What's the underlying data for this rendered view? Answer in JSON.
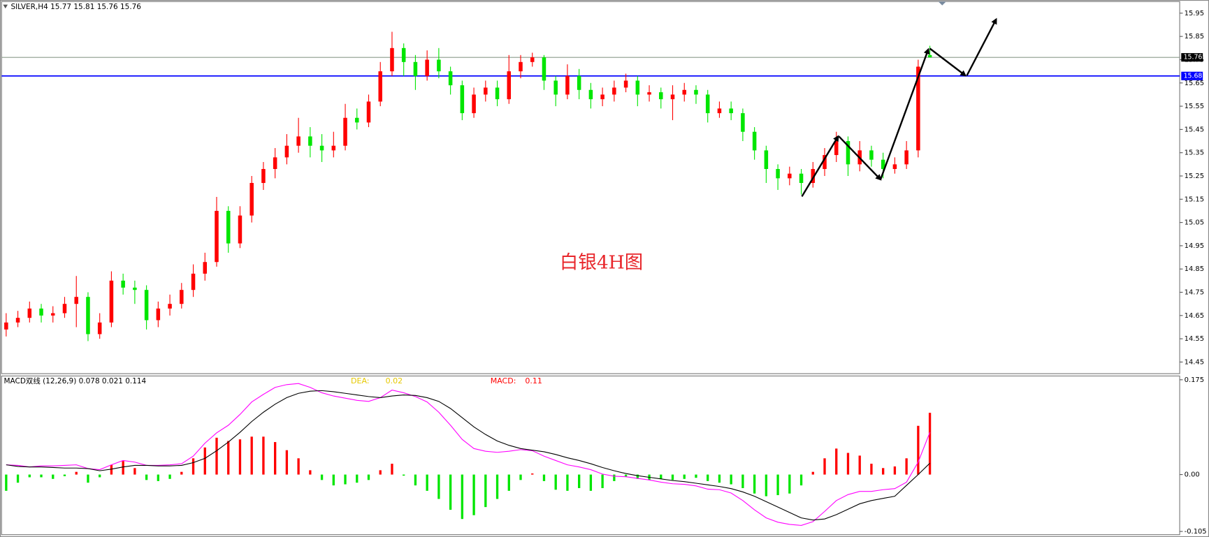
{
  "chart_data": [
    {
      "type": "candlestick",
      "title": "SILVER,H4  15.77 15.81 15.76 15.76",
      "annotation": "白银4H图",
      "ylim": [
        14.4,
        16.0
      ],
      "yticks": [
        15.95,
        15.85,
        15.75,
        15.65,
        15.55,
        15.45,
        15.35,
        15.25,
        15.15,
        15.05,
        14.95,
        14.85,
        14.75,
        14.65,
        14.55,
        14.45
      ],
      "grid": false,
      "up_color": "#ff0000",
      "down_color": "#00e600",
      "price_lines": [
        {
          "value": 15.76,
          "color": "#8c9c8c"
        },
        {
          "value": 15.68,
          "color": "#0000ff"
        }
      ],
      "ohlc": [
        [
          14.59,
          14.66,
          14.56,
          14.62
        ],
        [
          14.62,
          14.67,
          14.6,
          14.64
        ],
        [
          14.64,
          14.71,
          14.62,
          14.68
        ],
        [
          14.68,
          14.7,
          14.62,
          14.65
        ],
        [
          14.65,
          14.69,
          14.62,
          14.66
        ],
        [
          14.66,
          14.73,
          14.64,
          14.7
        ],
        [
          14.7,
          14.82,
          14.6,
          14.73
        ],
        [
          14.73,
          14.75,
          14.54,
          14.57
        ],
        [
          14.57,
          14.66,
          14.55,
          14.62
        ],
        [
          14.62,
          14.84,
          14.6,
          14.8
        ],
        [
          14.8,
          14.83,
          14.74,
          14.77
        ],
        [
          14.77,
          14.8,
          14.7,
          14.76
        ],
        [
          14.76,
          14.78,
          14.59,
          14.63
        ],
        [
          14.63,
          14.71,
          14.6,
          14.68
        ],
        [
          14.68,
          14.74,
          14.65,
          14.7
        ],
        [
          14.7,
          14.79,
          14.68,
          14.76
        ],
        [
          14.76,
          14.87,
          14.73,
          14.83
        ],
        [
          14.83,
          14.92,
          14.8,
          14.88
        ],
        [
          14.88,
          15.16,
          14.86,
          15.1
        ],
        [
          15.1,
          15.12,
          14.92,
          14.96
        ],
        [
          14.96,
          15.12,
          14.94,
          15.08
        ],
        [
          15.08,
          15.25,
          15.05,
          15.22
        ],
        [
          15.22,
          15.31,
          15.19,
          15.28
        ],
        [
          15.28,
          15.37,
          15.24,
          15.33
        ],
        [
          15.33,
          15.43,
          15.3,
          15.38
        ],
        [
          15.38,
          15.5,
          15.35,
          15.42
        ],
        [
          15.42,
          15.46,
          15.33,
          15.38
        ],
        [
          15.38,
          15.43,
          15.31,
          15.36
        ],
        [
          15.36,
          15.44,
          15.33,
          15.38
        ],
        [
          15.38,
          15.56,
          15.36,
          15.5
        ],
        [
          15.5,
          15.54,
          15.45,
          15.48
        ],
        [
          15.48,
          15.6,
          15.46,
          15.57
        ],
        [
          15.57,
          15.74,
          15.55,
          15.7
        ],
        [
          15.7,
          15.87,
          15.68,
          15.8
        ],
        [
          15.8,
          15.82,
          15.68,
          15.74
        ],
        [
          15.74,
          15.77,
          15.62,
          15.68
        ],
        [
          15.68,
          15.79,
          15.66,
          15.75
        ],
        [
          15.75,
          15.8,
          15.67,
          15.7
        ],
        [
          15.7,
          15.72,
          15.6,
          15.64
        ],
        [
          15.64,
          15.66,
          15.49,
          15.52
        ],
        [
          15.52,
          15.63,
          15.5,
          15.6
        ],
        [
          15.6,
          15.66,
          15.57,
          15.63
        ],
        [
          15.63,
          15.66,
          15.55,
          15.58
        ],
        [
          15.58,
          15.77,
          15.56,
          15.7
        ],
        [
          15.7,
          15.77,
          15.67,
          15.74
        ],
        [
          15.74,
          15.78,
          15.72,
          15.76
        ],
        [
          15.76,
          15.77,
          15.62,
          15.66
        ],
        [
          15.66,
          15.68,
          15.55,
          15.6
        ],
        [
          15.6,
          15.73,
          15.58,
          15.68
        ],
        [
          15.68,
          15.71,
          15.58,
          15.62
        ],
        [
          15.62,
          15.65,
          15.54,
          15.58
        ],
        [
          15.58,
          15.63,
          15.55,
          15.6
        ],
        [
          15.6,
          15.66,
          15.57,
          15.63
        ],
        [
          15.63,
          15.69,
          15.61,
          15.66
        ],
        [
          15.66,
          15.68,
          15.55,
          15.6
        ],
        [
          15.6,
          15.64,
          15.57,
          15.61
        ],
        [
          15.61,
          15.63,
          15.54,
          15.58
        ],
        [
          15.58,
          15.64,
          15.49,
          15.6
        ],
        [
          15.6,
          15.65,
          15.57,
          15.62
        ],
        [
          15.62,
          15.64,
          15.56,
          15.6
        ],
        [
          15.6,
          15.62,
          15.48,
          15.52
        ],
        [
          15.52,
          15.57,
          15.5,
          15.54
        ],
        [
          15.54,
          15.57,
          15.49,
          15.52
        ],
        [
          15.52,
          15.54,
          15.4,
          15.44
        ],
        [
          15.44,
          15.46,
          15.32,
          15.36
        ],
        [
          15.36,
          15.38,
          15.22,
          15.28
        ],
        [
          15.28,
          15.3,
          15.19,
          15.24
        ],
        [
          15.24,
          15.29,
          15.21,
          15.26
        ],
        [
          15.26,
          15.28,
          15.17,
          15.22
        ],
        [
          15.22,
          15.31,
          15.2,
          15.28
        ],
        [
          15.28,
          15.37,
          15.25,
          15.34
        ],
        [
          15.34,
          15.44,
          15.31,
          15.4
        ],
        [
          15.4,
          15.42,
          15.25,
          15.3
        ],
        [
          15.3,
          15.4,
          15.27,
          15.36
        ],
        [
          15.36,
          15.38,
          15.29,
          15.32
        ],
        [
          15.32,
          15.35,
          15.24,
          15.28
        ],
        [
          15.28,
          15.33,
          15.26,
          15.3
        ],
        [
          15.3,
          15.4,
          15.28,
          15.36
        ],
        [
          15.36,
          15.75,
          15.33,
          15.72
        ],
        [
          15.77,
          15.81,
          15.76,
          15.76
        ]
      ]
    },
    {
      "type": "macd",
      "title": "MACD双线 (12,26,9) 0.078 0.021 0.114",
      "ylim": [
        -0.111,
        0.182
      ],
      "yticks": [
        0.175,
        {
          "value": 0,
          "label": "0.00"
        },
        -0.105
      ],
      "readouts": [
        {
          "name": "DEA:",
          "text": "0.02",
          "color": "#e6c800"
        },
        {
          "name": "MACD:",
          "text": "0.11",
          "color": "#ff0000"
        }
      ],
      "histogram": {
        "up_color": "#ff0000",
        "down_color": "#00e600",
        "values": [
          -0.03,
          -0.015,
          -0.005,
          -0.005,
          -0.008,
          -0.003,
          0.005,
          -0.015,
          -0.005,
          0.018,
          0.025,
          0.012,
          -0.01,
          -0.012,
          -0.008,
          0.005,
          0.03,
          0.05,
          0.068,
          0.062,
          0.065,
          0.07,
          0.07,
          0.06,
          0.045,
          0.03,
          0.008,
          -0.01,
          -0.02,
          -0.018,
          -0.015,
          -0.01,
          0.008,
          0.02,
          -0.002,
          -0.02,
          -0.03,
          -0.045,
          -0.065,
          -0.082,
          -0.075,
          -0.06,
          -0.045,
          -0.03,
          -0.01,
          0.002,
          -0.012,
          -0.028,
          -0.03,
          -0.025,
          -0.03,
          -0.025,
          -0.012,
          -0.004,
          -0.008,
          -0.01,
          -0.008,
          -0.01,
          -0.008,
          -0.006,
          -0.012,
          -0.015,
          -0.018,
          -0.025,
          -0.035,
          -0.04,
          -0.038,
          -0.035,
          -0.02,
          0.005,
          0.03,
          0.048,
          0.04,
          0.035,
          0.02,
          0.012,
          0.015,
          0.03,
          0.09,
          0.114
        ]
      },
      "series": [
        {
          "color": "#ff00ff",
          "values": [
            0.018,
            0.017,
            0.014,
            0.016,
            0.016,
            0.017,
            0.018,
            0.011,
            0.009,
            0.018,
            0.026,
            0.023,
            0.017,
            0.017,
            0.018,
            0.02,
            0.034,
            0.058,
            0.077,
            0.091,
            0.111,
            0.134,
            0.148,
            0.161,
            0.166,
            0.168,
            0.161,
            0.151,
            0.145,
            0.141,
            0.137,
            0.135,
            0.142,
            0.156,
            0.151,
            0.144,
            0.134,
            0.115,
            0.091,
            0.065,
            0.048,
            0.043,
            0.041,
            0.043,
            0.046,
            0.044,
            0.034,
            0.026,
            0.018,
            0.014,
            0.009,
            0.001,
            -0.003,
            -0.004,
            -0.007,
            -0.01,
            -0.014,
            -0.017,
            -0.018,
            -0.021,
            -0.027,
            -0.028,
            -0.034,
            -0.048,
            -0.065,
            -0.08,
            -0.088,
            -0.092,
            -0.094,
            -0.087,
            -0.068,
            -0.048,
            -0.037,
            -0.031,
            -0.031,
            -0.028,
            -0.026,
            -0.014,
            0.023,
            0.078
          ]
        },
        {
          "color": "#000000",
          "values": [
            0.018,
            0.015,
            0.014,
            0.014,
            0.013,
            0.012,
            0.012,
            0.011,
            0.007,
            0.01,
            0.014,
            0.017,
            0.017,
            0.016,
            0.016,
            0.017,
            0.022,
            0.03,
            0.044,
            0.06,
            0.078,
            0.098,
            0.115,
            0.13,
            0.142,
            0.15,
            0.154,
            0.155,
            0.153,
            0.15,
            0.147,
            0.144,
            0.142,
            0.145,
            0.147,
            0.146,
            0.142,
            0.135,
            0.122,
            0.105,
            0.088,
            0.074,
            0.062,
            0.054,
            0.048,
            0.045,
            0.042,
            0.037,
            0.031,
            0.026,
            0.02,
            0.013,
            0.007,
            0.002,
            -0.002,
            -0.005,
            -0.008,
            -0.011,
            -0.013,
            -0.016,
            -0.019,
            -0.022,
            -0.026,
            -0.032,
            -0.04,
            -0.05,
            -0.06,
            -0.07,
            -0.08,
            -0.084,
            -0.082,
            -0.074,
            -0.064,
            -0.054,
            -0.048,
            -0.044,
            -0.04,
            -0.02,
            0.0,
            0.021
          ]
        }
      ]
    }
  ]
}
